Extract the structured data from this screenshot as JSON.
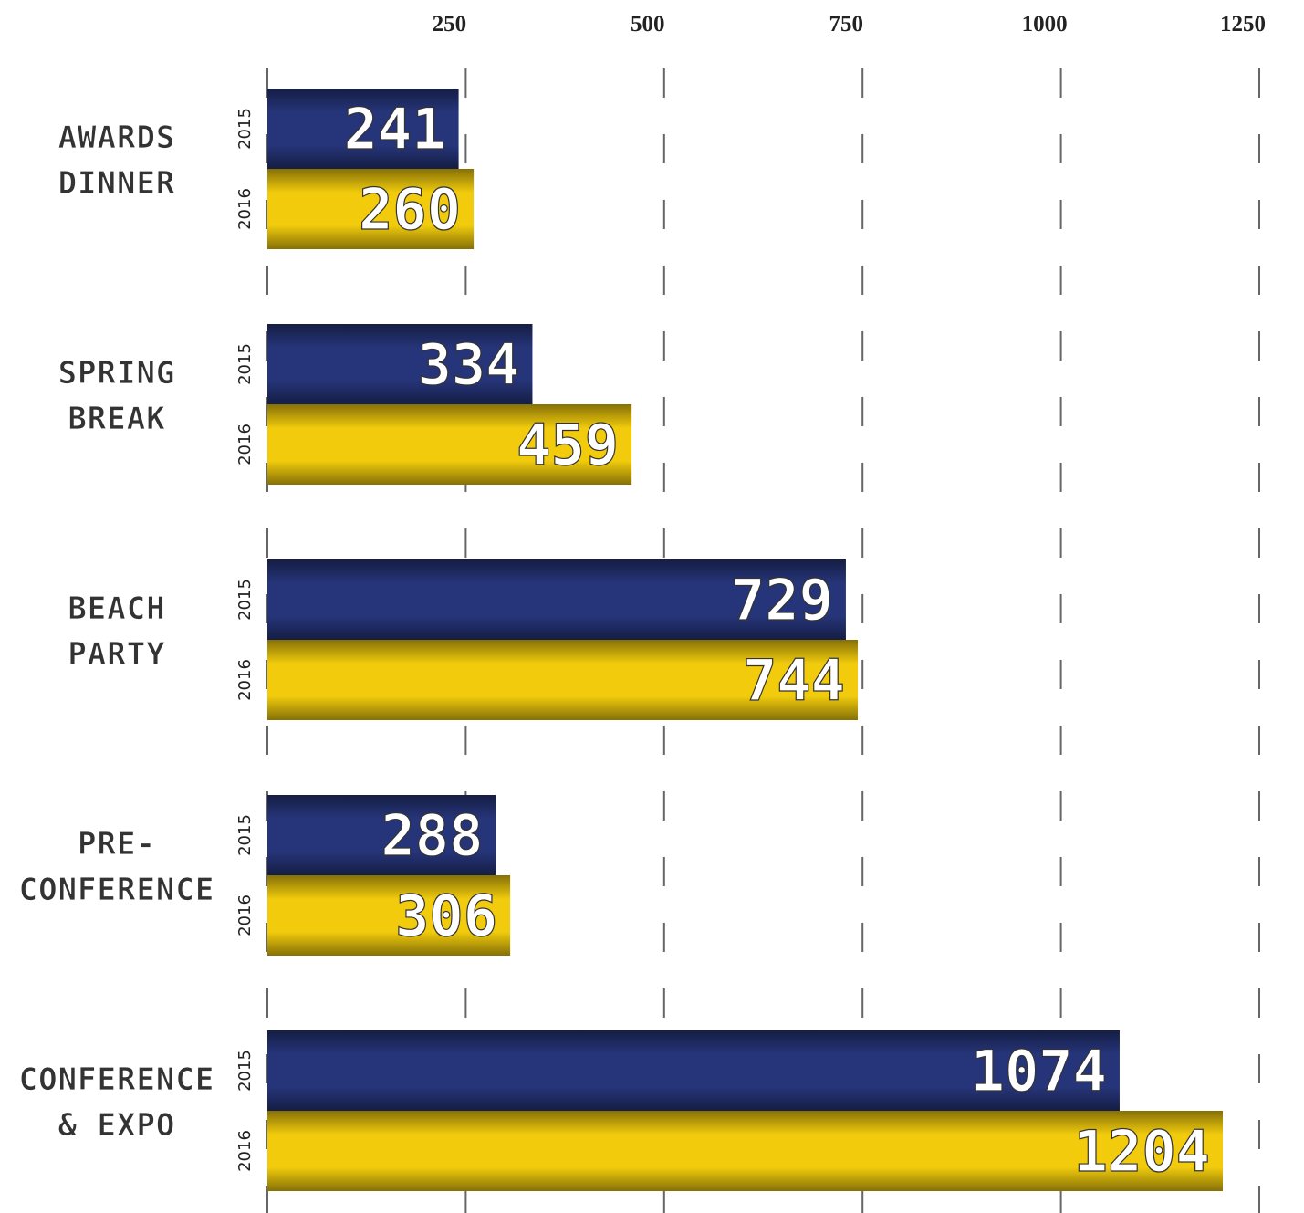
{
  "chart_data": {
    "type": "bar",
    "orientation": "horizontal",
    "categories": [
      [
        "AWARDS",
        "DINNER"
      ],
      [
        "SPRING",
        "BREAK"
      ],
      [
        "BEACH",
        "PARTY"
      ],
      [
        "PRE-",
        "CONFERENCE"
      ],
      [
        "CONFERENCE",
        "& EXPO"
      ]
    ],
    "series": [
      {
        "name": "2015",
        "color": "#26357a",
        "values": [
          241,
          334,
          729,
          288,
          1074
        ]
      },
      {
        "name": "2016",
        "color": "#f2cc0c",
        "values": [
          260,
          459,
          744,
          306,
          1204
        ]
      }
    ],
    "xlim": [
      0,
      1250
    ],
    "xticks": [
      250,
      500,
      750,
      1000,
      1250
    ],
    "grid": true
  }
}
